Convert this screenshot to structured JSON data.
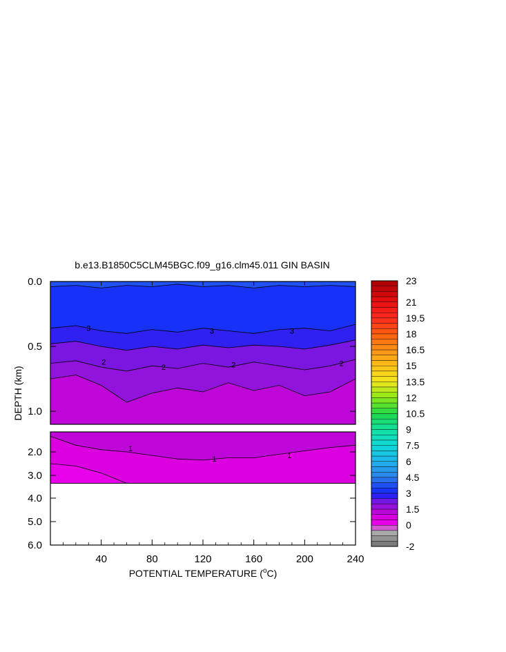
{
  "chart_data": {
    "type": "contour",
    "title": "b.e13.B1850C5CLM45BGC.f09_g16.clm45.011 GIN BASIN",
    "xlabel": "POTENTIAL TEMPERATURE (",
    "xlabel_sup": "o",
    "xlabel_tail": "C)",
    "ylabel": "DEPTH (km)",
    "xlim": [
      0,
      240
    ],
    "x_ticks": [
      "40",
      "80",
      "120",
      "160",
      "200",
      "240"
    ],
    "x_tick_values": [
      40,
      80,
      120,
      160,
      200,
      240
    ],
    "upper_panel": {
      "ylim": [
        0.0,
        1.1
      ],
      "y_ticks": [
        "0.0",
        "0.5",
        "1.0"
      ],
      "y_tick_values": [
        0.0,
        0.5,
        1.0
      ]
    },
    "lower_panel": {
      "ylim": [
        1.1,
        6.0
      ],
      "y_ticks": [
        "2.0",
        "3.0",
        "4.0",
        "5.0",
        "6.0"
      ],
      "y_tick_values": [
        2.0,
        3.0,
        4.0,
        5.0,
        6.0
      ],
      "data_bottom_depth": 3.35
    },
    "colorbar": {
      "labels": [
        "23",
        "21",
        "19.5",
        "18",
        "16.5",
        "15",
        "13.5",
        "12",
        "10.5",
        "9",
        "7.5",
        "6",
        "4.5",
        "3",
        "1.5",
        "0",
        "-2"
      ],
      "label_values": [
        23,
        21,
        19.5,
        18,
        16.5,
        15,
        13.5,
        12,
        10.5,
        9,
        7.5,
        6,
        4.5,
        3,
        1.5,
        0,
        -2
      ],
      "min": -2,
      "max": 23
    },
    "contours": [
      {
        "level": 4,
        "depth": [
          0.04,
          0.03,
          0.05,
          0.03,
          0.04,
          0.02,
          0.04,
          0.03,
          0.05,
          0.03,
          0.04,
          0.03,
          0.04
        ]
      },
      {
        "level": 3,
        "depth": [
          0.36,
          0.34,
          0.38,
          0.4,
          0.37,
          0.39,
          0.36,
          0.38,
          0.4,
          0.37,
          0.36,
          0.38,
          0.33
        ]
      },
      {
        "level": 2.5,
        "depth": [
          0.48,
          0.46,
          0.5,
          0.53,
          0.5,
          0.52,
          0.49,
          0.51,
          0.49,
          0.5,
          0.52,
          0.49,
          0.45
        ]
      },
      {
        "level": 2,
        "depth": [
          0.63,
          0.61,
          0.66,
          0.69,
          0.65,
          0.67,
          0.63,
          0.66,
          0.62,
          0.65,
          0.68,
          0.65,
          0.6
        ]
      },
      {
        "level": 1.5,
        "depth": [
          0.75,
          0.72,
          0.8,
          0.93,
          0.86,
          0.82,
          0.85,
          0.78,
          0.84,
          0.8,
          0.88,
          0.85,
          0.75
        ]
      },
      {
        "level": 1,
        "depth": [
          1.3,
          1.7,
          1.9,
          2.0,
          2.15,
          2.3,
          2.35,
          2.25,
          2.25,
          2.1,
          1.95,
          1.8,
          1.7
        ]
      },
      {
        "level": 0.5,
        "depth": [
          2.5,
          2.6,
          2.9,
          3.35,
          3.35,
          3.35,
          3.35,
          3.35,
          3.35,
          3.35,
          3.35,
          3.35,
          3.35
        ]
      }
    ],
    "contour_labels": [
      {
        "text": "3",
        "x": 30,
        "depth": 0.36
      },
      {
        "text": "3",
        "x": 127,
        "depth": 0.38
      },
      {
        "text": "3",
        "x": 190,
        "depth": 0.38
      },
      {
        "text": "2",
        "x": 42,
        "depth": 0.62
      },
      {
        "text": "2",
        "x": 89,
        "depth": 0.66
      },
      {
        "text": "2",
        "x": 144,
        "depth": 0.64
      },
      {
        "text": "2",
        "x": 229,
        "depth": 0.63
      },
      {
        "text": "1",
        "x": 63,
        "depth": 1.85
      },
      {
        "text": "1",
        "x": 129,
        "depth": 2.3
      },
      {
        "text": "1",
        "x": 188,
        "depth": 2.15
      }
    ],
    "grid": false,
    "legend": "right"
  }
}
